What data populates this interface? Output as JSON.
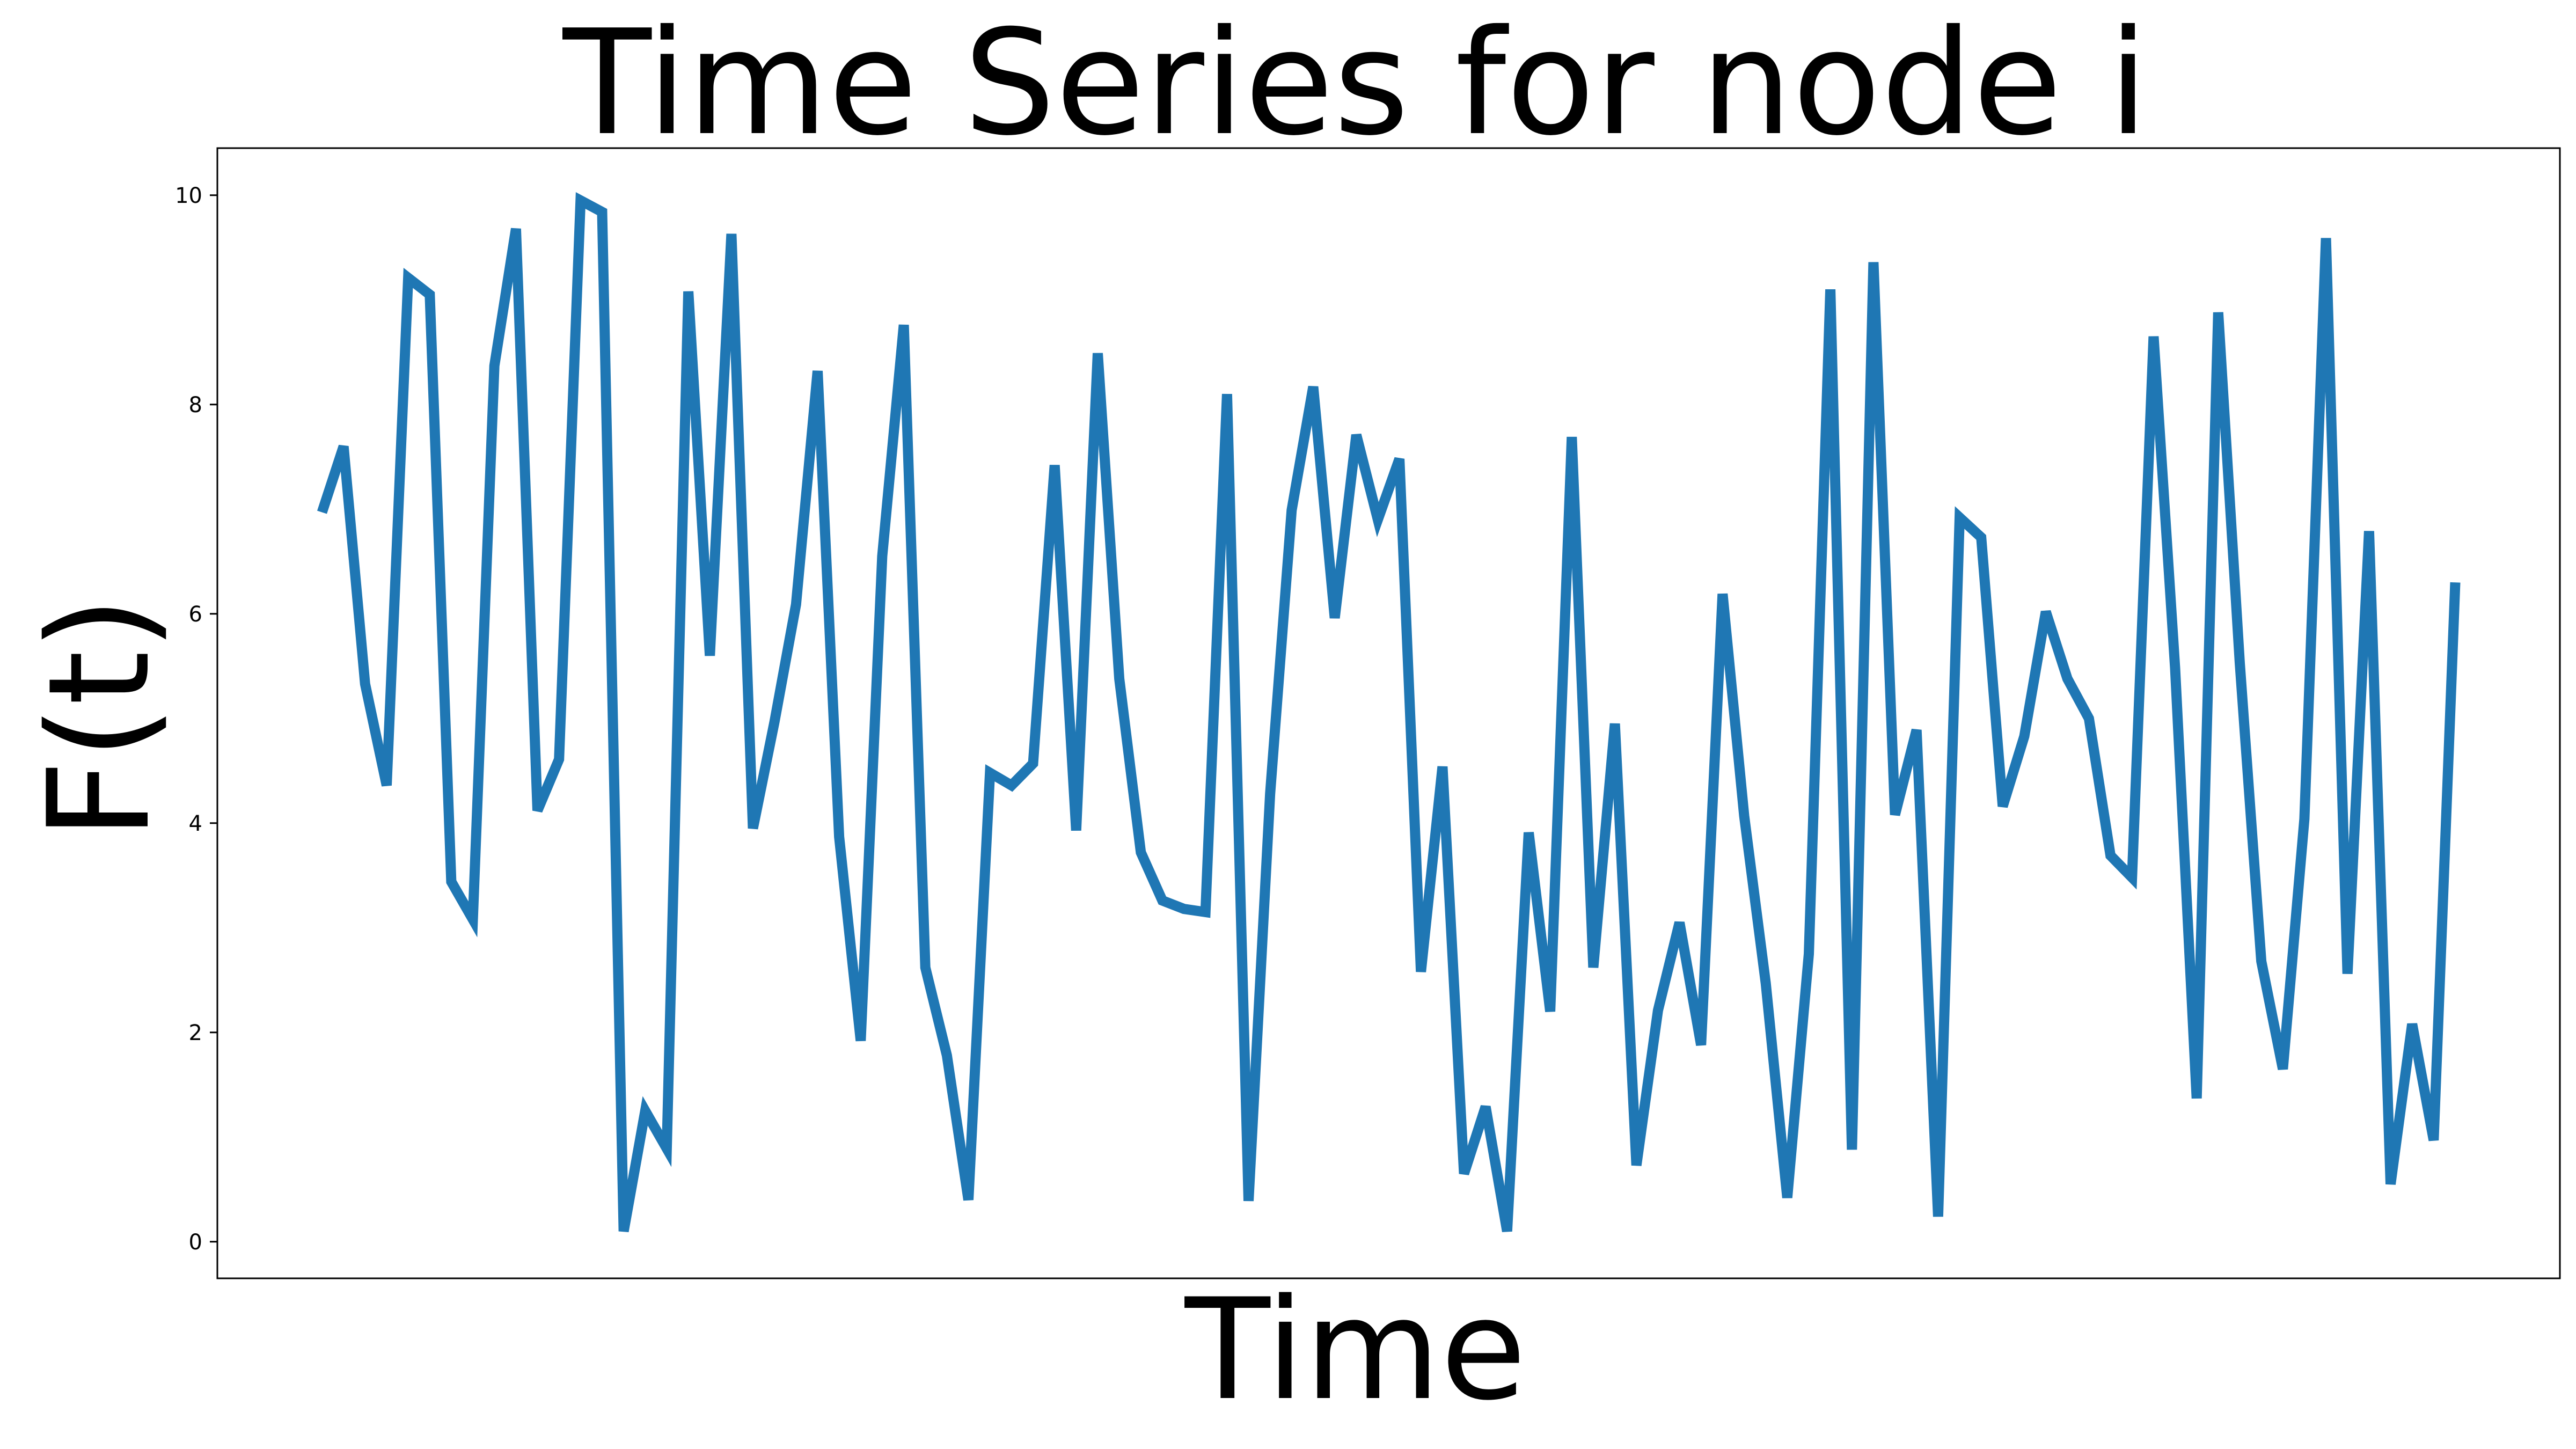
{
  "chart_data": {
    "type": "line",
    "title": "Time Series for node i",
    "xlabel": "Time",
    "ylabel": "F(t)",
    "ylim": [
      -0.35,
      10.45
    ],
    "yticks": [
      0,
      2,
      4,
      6,
      8,
      10
    ],
    "ytick_labels": [
      "0",
      "2",
      "4",
      "6",
      "8",
      "10"
    ],
    "xticks_visible": false,
    "grid": false,
    "series": [
      {
        "color": "#1f77b4",
        "x": [
          0,
          1,
          2,
          3,
          4,
          5,
          6,
          7,
          8,
          9,
          10,
          11,
          12,
          13,
          14,
          15,
          16,
          17,
          18,
          19,
          20,
          21,
          22,
          23,
          24,
          25,
          26,
          27,
          28,
          29,
          30,
          31,
          32,
          33,
          34,
          35,
          36,
          37,
          38,
          39,
          40,
          41,
          42,
          43,
          44,
          45,
          46,
          47,
          48,
          49,
          50,
          51,
          52,
          53,
          54,
          55,
          56,
          57,
          58,
          59,
          60,
          61,
          62,
          63,
          64,
          65,
          66,
          67,
          68,
          69,
          70,
          71,
          72,
          73,
          74,
          75,
          76,
          77,
          78,
          79,
          80,
          81,
          82,
          83,
          84,
          85,
          86,
          87,
          88,
          89,
          90,
          91,
          92,
          93,
          94,
          95,
          96,
          97,
          98,
          99
        ],
        "values": [
          6.97,
          7.6,
          5.33,
          4.36,
          9.21,
          9.05,
          3.44,
          3.08,
          8.37,
          9.68,
          4.12,
          4.61,
          9.95,
          9.84,
          0.1,
          1.25,
          0.89,
          9.08,
          5.6,
          9.63,
          3.95,
          4.97,
          6.09,
          8.32,
          3.87,
          1.92,
          6.55,
          8.76,
          2.62,
          1.78,
          0.4,
          4.48,
          4.36,
          4.57,
          7.42,
          3.93,
          8.49,
          5.38,
          3.72,
          3.26,
          3.18,
          3.15,
          8.1,
          0.39,
          4.28,
          6.99,
          8.17,
          5.96,
          7.71,
          6.9,
          7.48,
          2.58,
          4.54,
          0.65,
          1.29,
          0.1,
          3.91,
          2.2,
          7.69,
          2.62,
          4.95,
          0.73,
          2.21,
          3.05,
          1.88,
          6.19,
          4.07,
          2.47,
          0.42,
          2.75,
          9.1,
          0.88,
          9.36,
          4.08,
          4.89,
          0.24,
          6.92,
          6.73,
          4.16,
          4.83,
          6.02,
          5.38,
          5.0,
          3.69,
          3.48,
          8.65,
          5.48,
          1.37,
          8.88,
          5.53,
          2.68,
          1.65,
          4.04,
          9.59,
          2.56,
          6.79,
          0.55,
          2.08,
          0.97,
          6.3
        ]
      }
    ]
  }
}
